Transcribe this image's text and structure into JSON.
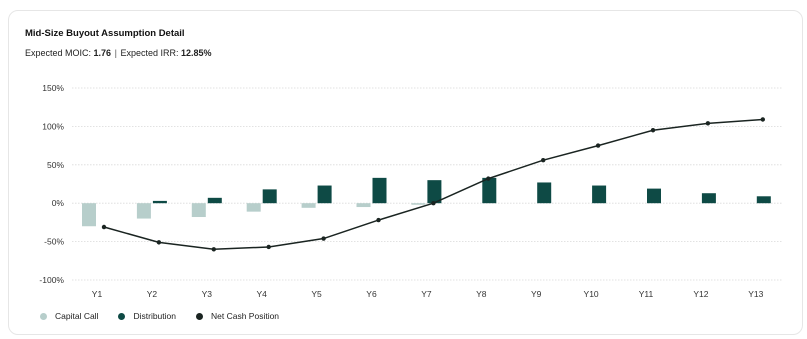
{
  "card": {
    "title": "Mid-Size Buyout Assumption Detail",
    "subtitle": {
      "moic_label": "Expected MOIC:",
      "moic_value": "1.76",
      "separator": "|",
      "irr_label": "Expected  IRR:",
      "irr_value": "12.85%"
    }
  },
  "colors": {
    "capital_call": "#b7cecb",
    "distribution": "#0e4a45",
    "net_cash": "#1a2421",
    "grid": "#d9d9d9",
    "axis_text": "#333333"
  },
  "chart_data": {
    "type": "bar+line",
    "title": "Mid-Size Buyout Assumption Detail",
    "categories": [
      "Y1",
      "Y2",
      "Y3",
      "Y4",
      "Y5",
      "Y6",
      "Y7",
      "Y8",
      "Y9",
      "Y10",
      "Y11",
      "Y12",
      "Y13"
    ],
    "ylim": [
      -100,
      150
    ],
    "yticks": [
      150,
      100,
      50,
      0,
      -50,
      -100
    ],
    "ytick_labels": [
      "150%",
      "100%",
      "50%",
      "0%",
      "-50%",
      "-100%"
    ],
    "grid": true,
    "legend_position": "bottom-left",
    "series": [
      {
        "name": "Capital Call",
        "type": "bar",
        "values": [
          -30,
          -20,
          -18,
          -11,
          -6,
          -5,
          -2,
          0,
          0,
          0,
          0,
          0,
          0
        ]
      },
      {
        "name": "Distribution",
        "type": "bar",
        "values": [
          0,
          3,
          7,
          18,
          23,
          33,
          30,
          33,
          27,
          23,
          19,
          13,
          9
        ]
      },
      {
        "name": "Net Cash Position",
        "type": "line",
        "values": [
          -31,
          -51,
          -60,
          -57,
          -46,
          -22,
          0,
          32,
          56,
          75,
          95,
          104,
          109
        ]
      }
    ]
  }
}
